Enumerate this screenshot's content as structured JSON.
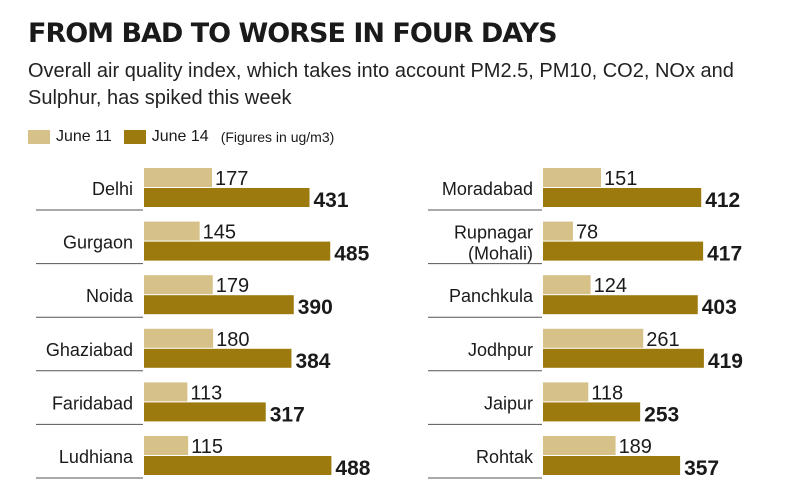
{
  "title": "FROM BAD TO WORSE IN FOUR DAYS",
  "subtitle": "Overall air quality index, which takes into account PM2.5, PM10, CO2, NOx and Sulphur, has spiked this week",
  "legend": {
    "note": "(Figures in ug/m3)"
  },
  "colors": {
    "june11": "#d6c189",
    "june14": "#9c7a0e",
    "rule": "#555555"
  },
  "chart_data": {
    "type": "bar",
    "orientation": "horizontal",
    "series": [
      {
        "name": "June 11"
      },
      {
        "name": "June 14"
      }
    ],
    "panels": [
      {
        "categories": [
          "Delhi",
          "Gurgaon",
          "Noida",
          "Ghaziabad",
          "Faridabad",
          "Ludhiana"
        ],
        "june11": [
          177,
          145,
          179,
          180,
          113,
          115
        ],
        "june14": [
          431,
          485,
          390,
          384,
          317,
          488
        ]
      },
      {
        "categories": [
          "Moradabad",
          "Rupnagar\n(Mohali)",
          "Panchkula",
          "Jodhpur",
          "Jaipur",
          "Rohtak"
        ],
        "june11": [
          151,
          78,
          124,
          261,
          118,
          189
        ],
        "june14": [
          412,
          417,
          403,
          419,
          253,
          357
        ]
      }
    ]
  }
}
